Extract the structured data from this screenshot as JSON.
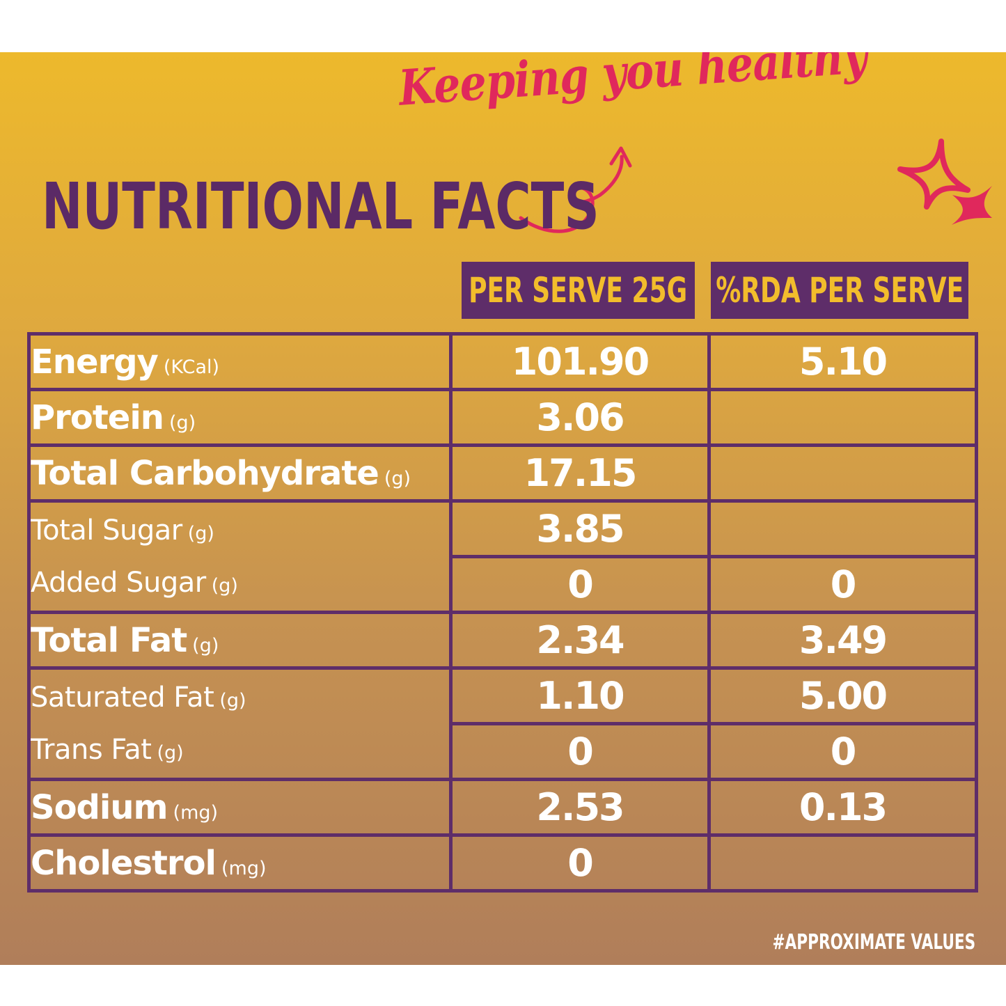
{
  "tagline": "Keeping you healthy",
  "title": "NUTRITIONAL FACTS",
  "columns": {
    "per_serve": "PER SERVE 25G",
    "rda": "%RDA PER SERVE"
  },
  "rows": {
    "energy": {
      "label": "Energy",
      "unit": "(KCal)",
      "per_serve": "101.90",
      "rda": "5.10"
    },
    "protein": {
      "label": "Protein",
      "unit": "(g)",
      "per_serve": "3.06",
      "rda": ""
    },
    "carbohydrate": {
      "label": "Total Carbohydrate",
      "unit": "(g)",
      "per_serve": "17.15",
      "rda": ""
    },
    "total_sugar": {
      "label": "Total Sugar",
      "unit": "(g)",
      "per_serve": "3.85",
      "rda": ""
    },
    "added_sugar": {
      "label": "Added Sugar",
      "unit": "(g)",
      "per_serve": "0",
      "rda": "0"
    },
    "total_fat": {
      "label": "Total Fat",
      "unit": "(g)",
      "per_serve": "2.34",
      "rda": "3.49"
    },
    "saturated_fat": {
      "label": "Saturated Fat",
      "unit": "(g)",
      "per_serve": "1.10",
      "rda": "5.00"
    },
    "trans_fat": {
      "label": "Trans Fat",
      "unit": "(g)",
      "per_serve": "0",
      "rda": "0"
    },
    "sodium": {
      "label": "Sodium",
      "unit": "(mg)",
      "per_serve": "2.53",
      "rda": "0.13"
    },
    "cholesterol": {
      "label": "Cholestrol",
      "unit": "(mg)",
      "per_serve": "0",
      "rda": ""
    }
  },
  "footnote": "#APPROXIMATE VALUES",
  "colors": {
    "purple": "#5e2d69",
    "accent_pink": "#e0285c",
    "header_text": "#f2bd2c"
  }
}
